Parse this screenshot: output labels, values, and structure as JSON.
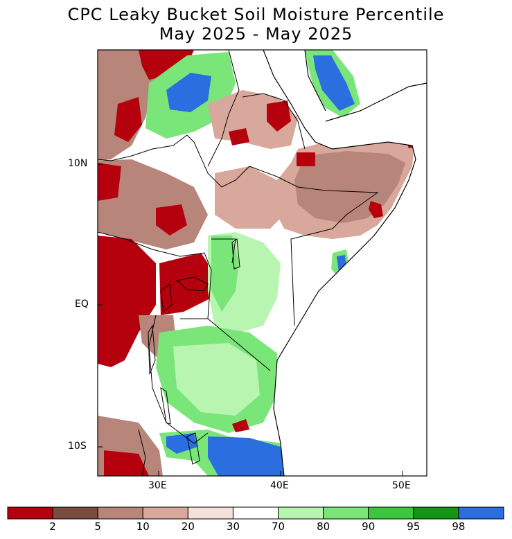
{
  "title": {
    "line1": "CPC Leaky Bucket Soil Moisture Percentile",
    "line2": "May 2025 - May 2025"
  },
  "axes": {
    "y_ticks": [
      "10N",
      "EQ",
      "10S"
    ],
    "x_ticks": [
      "30E",
      "40E",
      "50E"
    ]
  },
  "colorbar": {
    "colors": [
      "#b5000d",
      "#7a4b3f",
      "#b8857a",
      "#d9a89c",
      "#f5e1da",
      "#ffffff",
      "#b8f5b0",
      "#7ae67a",
      "#3cc83c",
      "#149614",
      "#2a6ee0"
    ],
    "labels": [
      "2",
      "5",
      "10",
      "20",
      "30",
      "70",
      "80",
      "90",
      "95",
      "98"
    ]
  },
  "palette": {
    "ocean": "#ffffff",
    "coast": "#000000"
  }
}
